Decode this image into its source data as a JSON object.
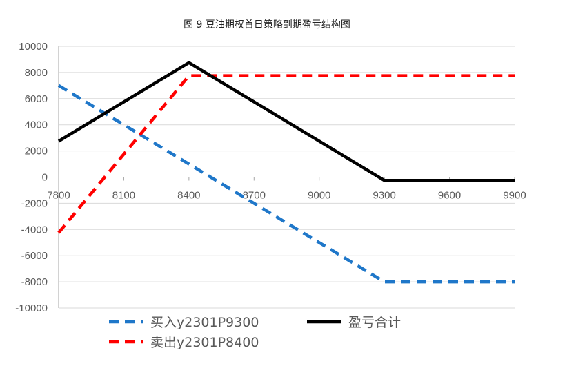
{
  "chart_data": {
    "type": "line",
    "title": "图 9 豆油期权首日策略到期盈亏结构图",
    "xlabel": "",
    "ylabel": "",
    "xlim": [
      7800,
      9900
    ],
    "ylim": [
      -10000,
      10000
    ],
    "x_ticks": [
      "7800",
      "8100",
      "8400",
      "8700",
      "9000",
      "9300",
      "9600",
      "9900"
    ],
    "y_ticks": [
      "10000",
      "8000",
      "6000",
      "4000",
      "2000",
      "0",
      "-2000",
      "-4000",
      "-6000",
      "-8000",
      "-10000"
    ],
    "grid": "horizontal",
    "legend_position": "bottom",
    "series": [
      {
        "name": "买入y2301P9300",
        "color": "#1f77c9",
        "style": "dashed",
        "points": [
          [
            7800,
            7000
          ],
          [
            9300,
            -8000
          ],
          [
            9900,
            -8000
          ]
        ]
      },
      {
        "name": "卖出y2301P8400",
        "color": "#ff0000",
        "style": "dashed",
        "points": [
          [
            7800,
            -4250
          ],
          [
            8400,
            7750
          ],
          [
            9900,
            7750
          ]
        ]
      },
      {
        "name": "盈亏合计",
        "color": "#000000",
        "style": "solid",
        "points": [
          [
            7800,
            2750
          ],
          [
            8400,
            8750
          ],
          [
            9300,
            -250
          ],
          [
            9900,
            -250
          ]
        ]
      }
    ]
  }
}
